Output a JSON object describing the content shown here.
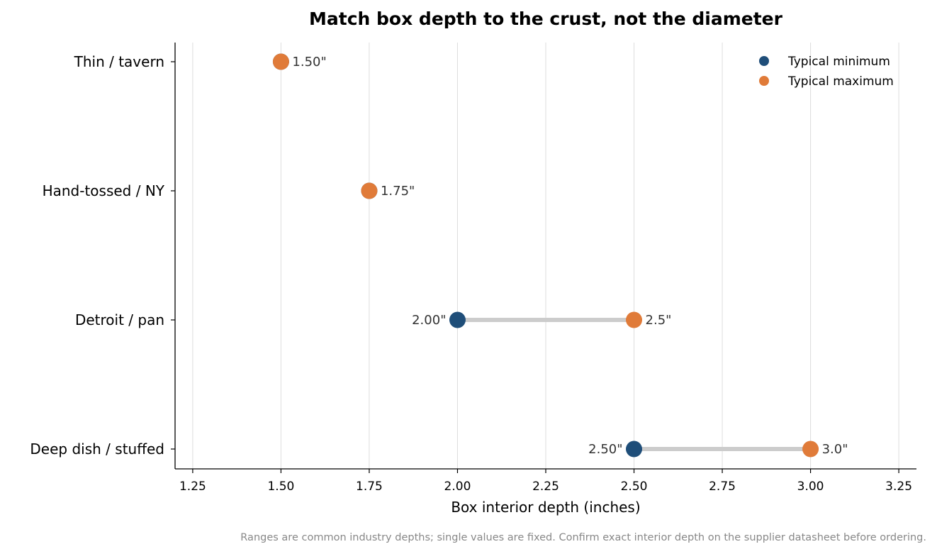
{
  "chart_data": {
    "type": "dumbbell",
    "title": "Match box depth to the crust, not the diameter",
    "xlabel": "Box interior depth (inches)",
    "ylabel": "",
    "xlim": [
      1.2,
      3.3
    ],
    "xticks": [
      1.25,
      1.5,
      1.75,
      2.0,
      2.25,
      2.5,
      2.75,
      3.0,
      3.25
    ],
    "xtick_labels": [
      "1.25",
      "1.50",
      "1.75",
      "2.00",
      "2.25",
      "2.50",
      "2.75",
      "3.00",
      "3.25"
    ],
    "grid": "vertical",
    "legend_position": "top-right",
    "categories": [
      "Thin / tavern",
      "Hand-tossed / NY",
      "Detroit / pan",
      "Deep dish / stuffed"
    ],
    "series": [
      {
        "name": "Typical minimum",
        "color": "#1f4e79",
        "values": [
          1.5,
          1.75,
          2.0,
          2.5
        ],
        "labels": [
          "",
          "",
          "2.00\"",
          "2.50\""
        ]
      },
      {
        "name": "Typical maximum",
        "color": "#e07b39",
        "values": [
          1.5,
          1.75,
          2.5,
          3.0
        ],
        "labels": [
          "1.50\"",
          "1.75\"",
          "2.5\"",
          "3.0\""
        ]
      }
    ],
    "range_line_color": "#cccccc",
    "footnote": "Ranges are common industry depths; single values are fixed. Confirm exact interior depth on the supplier datasheet before ordering."
  }
}
